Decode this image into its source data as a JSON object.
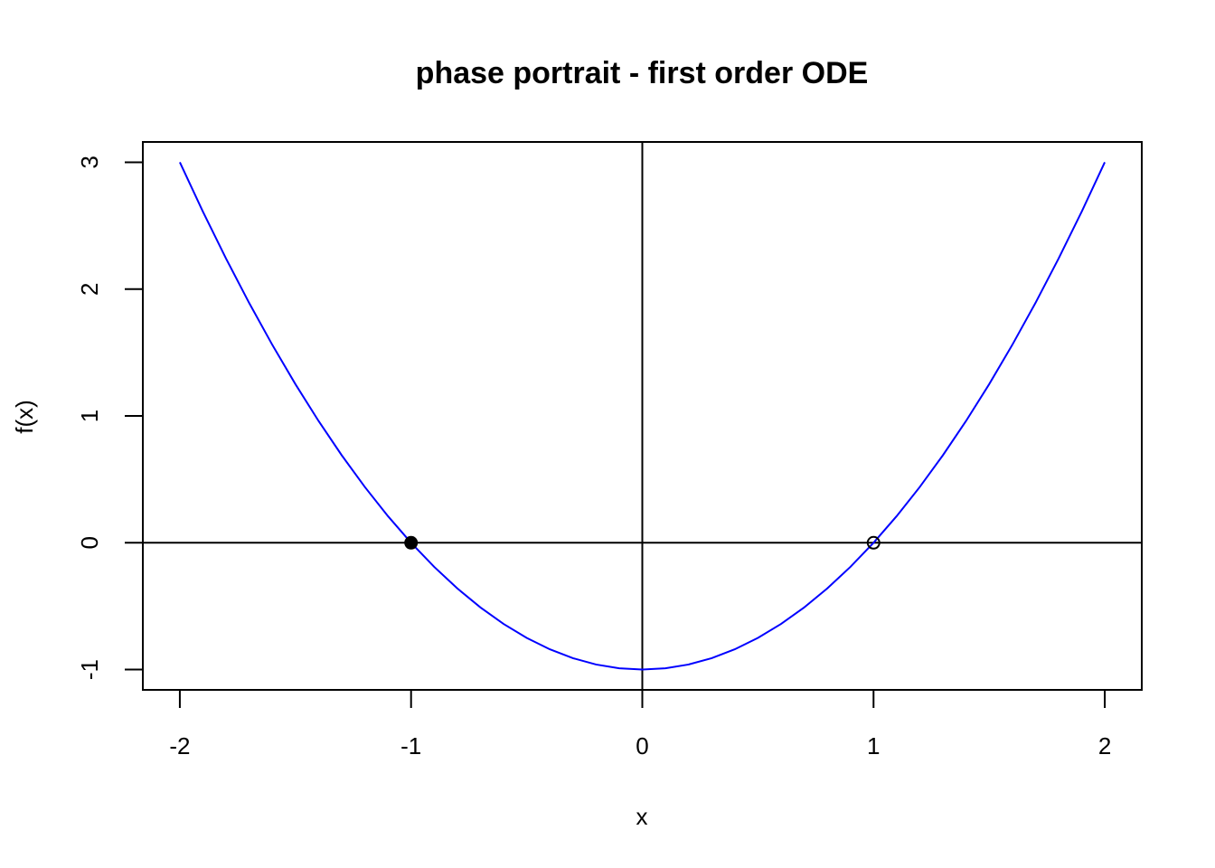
{
  "chart_data": {
    "type": "line",
    "title": "phase portrait - first order ODE",
    "xlabel": "x",
    "ylabel": "f(x)",
    "xlim": [
      -2.16,
      2.16
    ],
    "ylim": [
      -1.16,
      3.16
    ],
    "x_ticks": [
      -2,
      -1,
      0,
      1,
      2
    ],
    "y_ticks": [
      -1,
      0,
      1,
      2,
      3
    ],
    "grid": false,
    "legend": "none",
    "series": [
      {
        "function": "x^2 - 1",
        "color": "#0000ff",
        "x": [
          -2.0,
          -1.9,
          -1.8,
          -1.7,
          -1.6,
          -1.5,
          -1.4,
          -1.3,
          -1.2,
          -1.1,
          -1.0,
          -0.9,
          -0.8,
          -0.7,
          -0.6,
          -0.5,
          -0.4,
          -0.3,
          -0.2,
          -0.1,
          0.0,
          0.1,
          0.2,
          0.3,
          0.4,
          0.5,
          0.6,
          0.7,
          0.8,
          0.9,
          1.0,
          1.1,
          1.2,
          1.3,
          1.4,
          1.5,
          1.6,
          1.7,
          1.8,
          1.9,
          2.0
        ],
        "y": [
          3.0,
          2.61,
          2.24,
          1.89,
          1.56,
          1.25,
          0.96,
          0.69,
          0.44,
          0.21,
          0.0,
          -0.19,
          -0.36,
          -0.51,
          -0.64,
          -0.75,
          -0.84,
          -0.91,
          -0.96,
          -0.99,
          -1.0,
          -0.99,
          -0.96,
          -0.91,
          -0.84,
          -0.75,
          -0.64,
          -0.51,
          -0.36,
          -0.19,
          0.0,
          0.21,
          0.44,
          0.69,
          0.96,
          1.25,
          1.56,
          1.89,
          2.24,
          2.61,
          3.0
        ]
      }
    ],
    "reference_lines": [
      {
        "orientation": "horizontal",
        "value": 0,
        "color": "#000000"
      },
      {
        "orientation": "vertical",
        "value": 0,
        "color": "#000000"
      }
    ],
    "fixed_points": [
      {
        "x": -1,
        "y": 0,
        "style": "filled",
        "color": "#000000"
      },
      {
        "x": 1,
        "y": 0,
        "style": "open",
        "color": "#000000"
      }
    ]
  }
}
